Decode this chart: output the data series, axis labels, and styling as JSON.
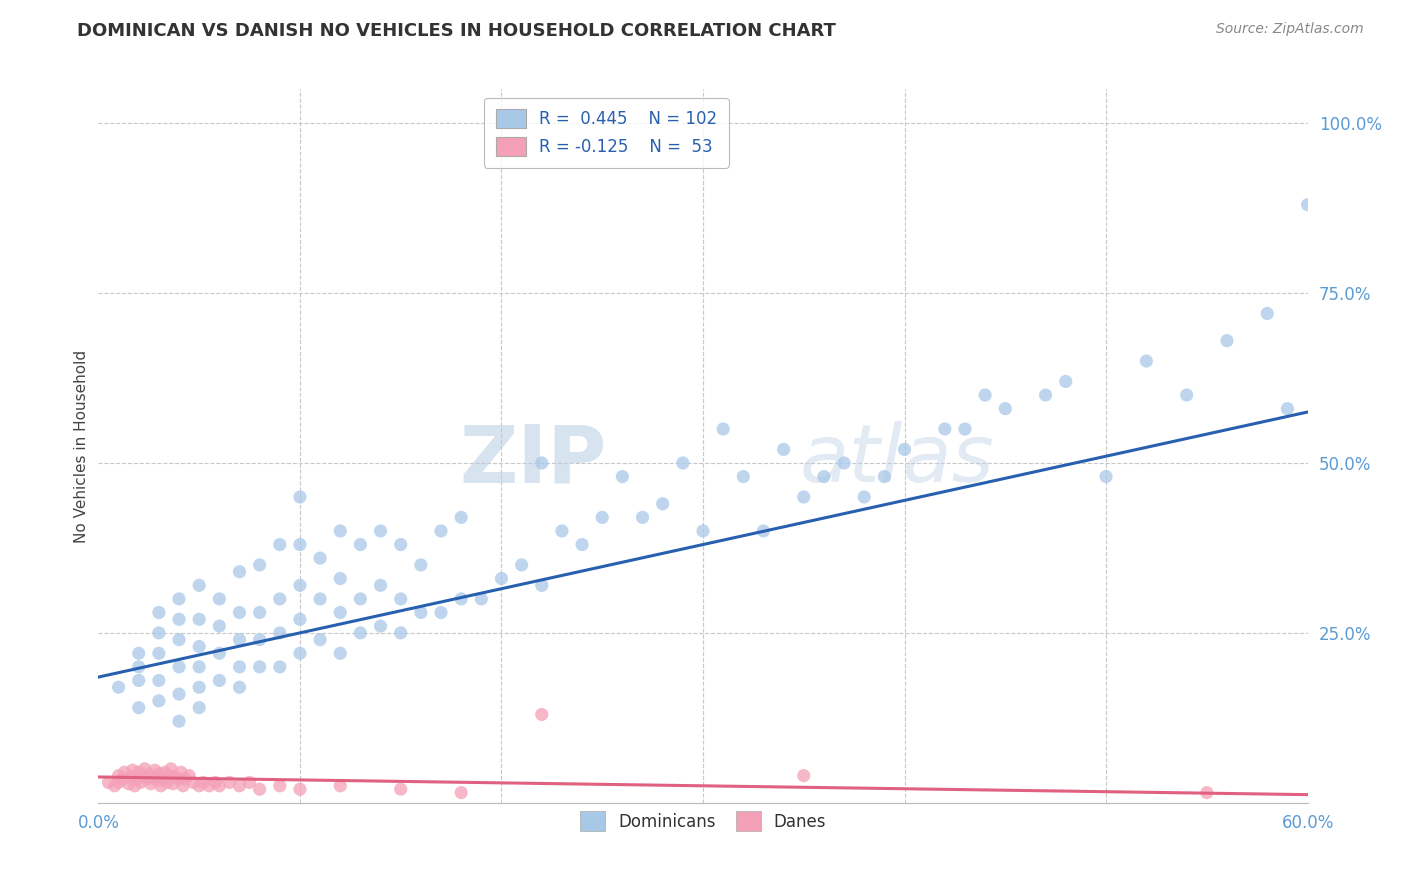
{
  "title": "DOMINICAN VS DANISH NO VEHICLES IN HOUSEHOLD CORRELATION CHART",
  "source": "Source: ZipAtlas.com",
  "ylabel": "No Vehicles in Household",
  "xlim": [
    0.0,
    0.6
  ],
  "ylim": [
    0.0,
    1.05
  ],
  "ytick_vals": [
    0.0,
    0.25,
    0.5,
    0.75,
    1.0
  ],
  "ytick_labels": [
    "",
    "25.0%",
    "50.0%",
    "75.0%",
    "100.0%"
  ],
  "xtick_major": [
    0.0,
    0.6
  ],
  "xtick_minor": [
    0.1,
    0.2,
    0.3,
    0.4,
    0.5
  ],
  "dominican_R": 0.445,
  "dominican_N": 102,
  "danish_R": -0.125,
  "danish_N": 53,
  "dominican_color": "#a8c8e8",
  "danish_color": "#f4a0b8",
  "dominican_line_color": "#2860b0",
  "danish_line_color": "#e06080",
  "watermark": "ZIPatlas",
  "background_color": "#ffffff",
  "grid_color": "#c8c8c8",
  "dominican_x": [
    0.01,
    0.02,
    0.02,
    0.02,
    0.02,
    0.03,
    0.03,
    0.03,
    0.03,
    0.03,
    0.04,
    0.04,
    0.04,
    0.04,
    0.04,
    0.04,
    0.05,
    0.05,
    0.05,
    0.05,
    0.05,
    0.05,
    0.06,
    0.06,
    0.06,
    0.06,
    0.07,
    0.07,
    0.07,
    0.07,
    0.07,
    0.08,
    0.08,
    0.08,
    0.08,
    0.09,
    0.09,
    0.09,
    0.09,
    0.1,
    0.1,
    0.1,
    0.1,
    0.1,
    0.11,
    0.11,
    0.11,
    0.12,
    0.12,
    0.12,
    0.12,
    0.13,
    0.13,
    0.13,
    0.14,
    0.14,
    0.14,
    0.15,
    0.15,
    0.15,
    0.16,
    0.16,
    0.17,
    0.17,
    0.18,
    0.18,
    0.19,
    0.2,
    0.21,
    0.22,
    0.22,
    0.23,
    0.24,
    0.25,
    0.26,
    0.27,
    0.28,
    0.29,
    0.3,
    0.31,
    0.32,
    0.33,
    0.34,
    0.35,
    0.36,
    0.37,
    0.38,
    0.39,
    0.4,
    0.42,
    0.43,
    0.44,
    0.45,
    0.47,
    0.48,
    0.5,
    0.52,
    0.54,
    0.56,
    0.58,
    0.59,
    0.6
  ],
  "dominican_y": [
    0.17,
    0.14,
    0.18,
    0.2,
    0.22,
    0.15,
    0.18,
    0.22,
    0.25,
    0.28,
    0.12,
    0.16,
    0.2,
    0.24,
    0.27,
    0.3,
    0.14,
    0.17,
    0.2,
    0.23,
    0.27,
    0.32,
    0.18,
    0.22,
    0.26,
    0.3,
    0.17,
    0.2,
    0.24,
    0.28,
    0.34,
    0.2,
    0.24,
    0.28,
    0.35,
    0.2,
    0.25,
    0.3,
    0.38,
    0.22,
    0.27,
    0.32,
    0.38,
    0.45,
    0.24,
    0.3,
    0.36,
    0.22,
    0.28,
    0.33,
    0.4,
    0.25,
    0.3,
    0.38,
    0.26,
    0.32,
    0.4,
    0.25,
    0.3,
    0.38,
    0.28,
    0.35,
    0.28,
    0.4,
    0.3,
    0.42,
    0.3,
    0.33,
    0.35,
    0.32,
    0.5,
    0.4,
    0.38,
    0.42,
    0.48,
    0.42,
    0.44,
    0.5,
    0.4,
    0.55,
    0.48,
    0.4,
    0.52,
    0.45,
    0.48,
    0.5,
    0.45,
    0.48,
    0.52,
    0.55,
    0.55,
    0.6,
    0.58,
    0.6,
    0.62,
    0.48,
    0.65,
    0.6,
    0.68,
    0.72,
    0.58,
    0.88
  ],
  "danish_x": [
    0.005,
    0.008,
    0.01,
    0.01,
    0.012,
    0.013,
    0.015,
    0.016,
    0.017,
    0.018,
    0.019,
    0.02,
    0.021,
    0.022,
    0.023,
    0.024,
    0.025,
    0.026,
    0.027,
    0.028,
    0.029,
    0.03,
    0.031,
    0.032,
    0.033,
    0.034,
    0.035,
    0.036,
    0.037,
    0.038,
    0.04,
    0.041,
    0.042,
    0.043,
    0.045,
    0.047,
    0.05,
    0.052,
    0.055,
    0.058,
    0.06,
    0.065,
    0.07,
    0.075,
    0.08,
    0.09,
    0.1,
    0.12,
    0.15,
    0.18,
    0.22,
    0.35,
    0.55
  ],
  "danish_y": [
    0.03,
    0.025,
    0.04,
    0.03,
    0.035,
    0.045,
    0.028,
    0.038,
    0.048,
    0.025,
    0.035,
    0.045,
    0.03,
    0.04,
    0.05,
    0.035,
    0.042,
    0.028,
    0.038,
    0.048,
    0.033,
    0.043,
    0.025,
    0.035,
    0.045,
    0.03,
    0.04,
    0.05,
    0.028,
    0.038,
    0.035,
    0.045,
    0.025,
    0.035,
    0.04,
    0.03,
    0.025,
    0.03,
    0.025,
    0.03,
    0.025,
    0.03,
    0.025,
    0.03,
    0.02,
    0.025,
    0.02,
    0.025,
    0.02,
    0.015,
    0.13,
    0.04,
    0.015
  ],
  "dominican_line_start_y": 0.185,
  "dominican_line_end_y": 0.575,
  "danish_line_start_y": 0.038,
  "danish_line_end_y": 0.012
}
